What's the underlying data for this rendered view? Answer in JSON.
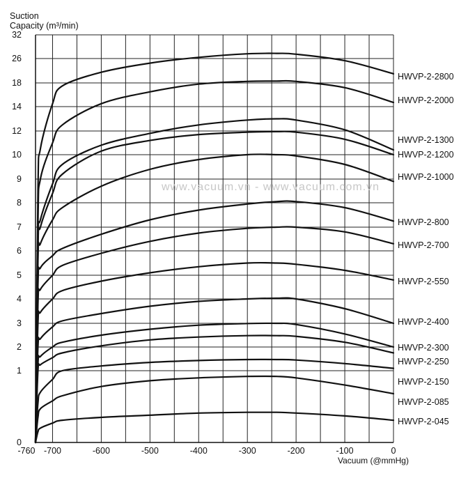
{
  "chart_data": {
    "type": "line",
    "ylabel_line1": "Suction",
    "ylabel_line2": "Capacity (m³/min)",
    "xlabel": "Vacuum (@mmHg)",
    "watermark": "www.vacuum.vn - www.vacuum.com.vn",
    "xlim": [
      -760,
      0
    ],
    "x_ticks": [
      "-760",
      "-700",
      "-600",
      "-500",
      "-400",
      "-300",
      "-200",
      "-100",
      "0"
    ],
    "x_tick_values": [
      -760,
      -700,
      -600,
      -500,
      -400,
      -300,
      -200,
      -100,
      0
    ],
    "y_ticks": [
      "0",
      "1",
      "2",
      "3",
      "4",
      "5",
      "6",
      "7",
      "8",
      "9",
      "10",
      "12",
      "14",
      "18",
      "26",
      "32"
    ],
    "grid": true,
    "legend_placement": "right end of each curve",
    "series": [
      {
        "name": "HWVP-2-2800",
        "points": [
          [
            -735,
            0
          ],
          [
            -730,
            8.5
          ],
          [
            -725,
            10.5
          ],
          [
            -700,
            14.5
          ],
          [
            -680,
            17.5
          ],
          [
            -600,
            21.5
          ],
          [
            -500,
            24.5
          ],
          [
            -400,
            26.3
          ],
          [
            -300,
            27.2
          ],
          [
            -240,
            27.3
          ],
          [
            -200,
            27.1
          ],
          [
            -100,
            25.3
          ],
          [
            0,
            21
          ]
        ]
      },
      {
        "name": "HWVP-2-2000",
        "points": [
          [
            -735,
            0
          ],
          [
            -730,
            7.2
          ],
          [
            -725,
            9
          ],
          [
            -700,
            11
          ],
          [
            -680,
            12.5
          ],
          [
            -600,
            14.5
          ],
          [
            -500,
            16.5
          ],
          [
            -400,
            17.8
          ],
          [
            -300,
            18.5
          ],
          [
            -240,
            18.6
          ],
          [
            -200,
            18.5
          ],
          [
            -100,
            17.2
          ],
          [
            0,
            14.7
          ]
        ]
      },
      {
        "name": "HWVP-2-1300",
        "points": [
          [
            -735,
            0
          ],
          [
            -730,
            6.3
          ],
          [
            -725,
            7.3
          ],
          [
            -700,
            8.8
          ],
          [
            -680,
            9.6
          ],
          [
            -600,
            10.8
          ],
          [
            -500,
            11.8
          ],
          [
            -400,
            12.5
          ],
          [
            -300,
            12.9
          ],
          [
            -240,
            13
          ],
          [
            -200,
            12.9
          ],
          [
            -100,
            12.1
          ],
          [
            0,
            10.4
          ]
        ]
      },
      {
        "name": "HWVP-2-1200",
        "points": [
          [
            -735,
            0
          ],
          [
            -730,
            6.1
          ],
          [
            -725,
            7
          ],
          [
            -700,
            8.4
          ],
          [
            -680,
            9.2
          ],
          [
            -600,
            10.3
          ],
          [
            -500,
            11.2
          ],
          [
            -400,
            11.7
          ],
          [
            -300,
            11.9
          ],
          [
            -240,
            11.95
          ],
          [
            -200,
            11.9
          ],
          [
            -100,
            11.3
          ],
          [
            0,
            10
          ]
        ]
      },
      {
        "name": "HWVP-2-1000",
        "points": [
          [
            -735,
            0
          ],
          [
            -730,
            5.6
          ],
          [
            -725,
            6.3
          ],
          [
            -700,
            7.3
          ],
          [
            -680,
            7.8
          ],
          [
            -600,
            8.7
          ],
          [
            -500,
            9.4
          ],
          [
            -400,
            9.8
          ],
          [
            -300,
            10
          ],
          [
            -240,
            10
          ],
          [
            -200,
            9.95
          ],
          [
            -100,
            9.6
          ],
          [
            0,
            8.9
          ]
        ]
      },
      {
        "name": "HWVP-2-800",
        "points": [
          [
            -735,
            0
          ],
          [
            -730,
            4.6
          ],
          [
            -725,
            5.3
          ],
          [
            -700,
            5.8
          ],
          [
            -680,
            6.1
          ],
          [
            -600,
            6.7
          ],
          [
            -500,
            7.3
          ],
          [
            -400,
            7.7
          ],
          [
            -300,
            7.95
          ],
          [
            -240,
            8.05
          ],
          [
            -200,
            8.05
          ],
          [
            -100,
            7.8
          ],
          [
            0,
            7.25
          ]
        ]
      },
      {
        "name": "HWVP-2-700",
        "points": [
          [
            -735,
            0
          ],
          [
            -730,
            3.8
          ],
          [
            -725,
            4.4
          ],
          [
            -700,
            5
          ],
          [
            -680,
            5.4
          ],
          [
            -600,
            5.9
          ],
          [
            -500,
            6.4
          ],
          [
            -400,
            6.75
          ],
          [
            -300,
            6.95
          ],
          [
            -240,
            7
          ],
          [
            -200,
            7
          ],
          [
            -100,
            6.8
          ],
          [
            0,
            6.3
          ]
        ]
      },
      {
        "name": "HWVP-2-550",
        "points": [
          [
            -735,
            0
          ],
          [
            -730,
            3
          ],
          [
            -725,
            3.45
          ],
          [
            -700,
            4
          ],
          [
            -680,
            4.35
          ],
          [
            -600,
            4.75
          ],
          [
            -500,
            5.1
          ],
          [
            -400,
            5.35
          ],
          [
            -300,
            5.5
          ],
          [
            -240,
            5.5
          ],
          [
            -200,
            5.45
          ],
          [
            -100,
            5.2
          ],
          [
            0,
            4.8
          ]
        ]
      },
      {
        "name": "HWVP-2-400",
        "points": [
          [
            -735,
            0
          ],
          [
            -730,
            2
          ],
          [
            -725,
            2.35
          ],
          [
            -700,
            2.85
          ],
          [
            -680,
            3.1
          ],
          [
            -600,
            3.4
          ],
          [
            -500,
            3.7
          ],
          [
            -400,
            3.9
          ],
          [
            -300,
            4
          ],
          [
            -240,
            4.03
          ],
          [
            -200,
            4
          ],
          [
            -100,
            3.6
          ],
          [
            0,
            3
          ]
        ]
      },
      {
        "name": "HWVP-2-300",
        "points": [
          [
            -735,
            0
          ],
          [
            -730,
            1.3
          ],
          [
            -725,
            1.6
          ],
          [
            -700,
            2
          ],
          [
            -680,
            2.2
          ],
          [
            -600,
            2.5
          ],
          [
            -500,
            2.75
          ],
          [
            -400,
            2.92
          ],
          [
            -300,
            2.99
          ],
          [
            -240,
            3
          ],
          [
            -200,
            2.95
          ],
          [
            -100,
            2.55
          ],
          [
            0,
            2
          ]
        ]
      },
      {
        "name": "HWVP-2-250",
        "points": [
          [
            -735,
            0
          ],
          [
            -730,
            1
          ],
          [
            -725,
            1.25
          ],
          [
            -700,
            1.55
          ],
          [
            -680,
            1.75
          ],
          [
            -600,
            2.05
          ],
          [
            -500,
            2.3
          ],
          [
            -400,
            2.42
          ],
          [
            -300,
            2.48
          ],
          [
            -240,
            2.48
          ],
          [
            -200,
            2.45
          ],
          [
            -100,
            2.2
          ],
          [
            0,
            1.75
          ]
        ]
      },
      {
        "name": "HWVP-2-150",
        "points": [
          [
            -735,
            0
          ],
          [
            -730,
            0.55
          ],
          [
            -725,
            0.7
          ],
          [
            -700,
            0.88
          ],
          [
            -680,
            1
          ],
          [
            -600,
            1.2
          ],
          [
            -500,
            1.35
          ],
          [
            -400,
            1.43
          ],
          [
            -300,
            1.47
          ],
          [
            -240,
            1.47
          ],
          [
            -200,
            1.45
          ],
          [
            -100,
            1.3
          ],
          [
            0,
            1.1
          ]
        ]
      },
      {
        "name": "HWVP-2-085",
        "points": [
          [
            -735,
            0
          ],
          [
            -730,
            0.35
          ],
          [
            -725,
            0.47
          ],
          [
            -700,
            0.58
          ],
          [
            -680,
            0.65
          ],
          [
            -600,
            0.78
          ],
          [
            -500,
            0.86
          ],
          [
            -400,
            0.9
          ],
          [
            -300,
            0.92
          ],
          [
            -240,
            0.92
          ],
          [
            -200,
            0.9
          ],
          [
            -100,
            0.8
          ],
          [
            0,
            0.68
          ]
        ]
      },
      {
        "name": "HWVP-2-045",
        "points": [
          [
            -735,
            0
          ],
          [
            -730,
            0.15
          ],
          [
            -725,
            0.2
          ],
          [
            -700,
            0.27
          ],
          [
            -680,
            0.31
          ],
          [
            -600,
            0.35
          ],
          [
            -500,
            0.38
          ],
          [
            -400,
            0.41
          ],
          [
            -300,
            0.42
          ],
          [
            -240,
            0.42
          ],
          [
            -200,
            0.41
          ],
          [
            -100,
            0.37
          ],
          [
            0,
            0.31
          ]
        ]
      }
    ]
  }
}
